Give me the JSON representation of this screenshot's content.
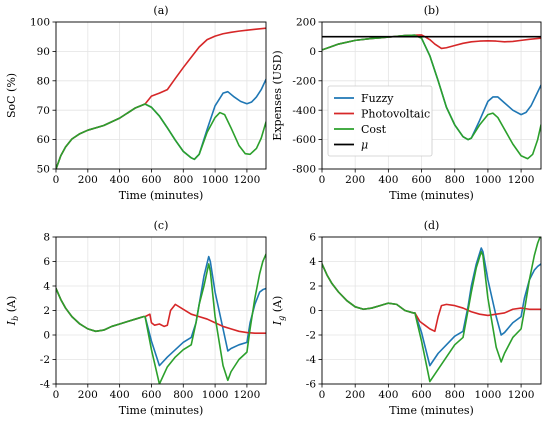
{
  "colors": {
    "fuzzy": "#1f77b4",
    "photovoltaic": "#d62728",
    "cost": "#2ca02c",
    "mu": "#000000"
  },
  "chart_data": [
    {
      "id": "a",
      "type": "line",
      "title": "(a)",
      "xlabel": "Time (minutes)",
      "ylabel": "SoC (%)",
      "xlim": [
        0,
        1320
      ],
      "ylim": [
        50,
        100
      ],
      "xticks": [
        0,
        200,
        400,
        600,
        800,
        1000,
        1200
      ],
      "yticks": [
        50,
        60,
        70,
        80,
        90,
        100
      ],
      "grid": true,
      "series": [
        {
          "name": "Fuzzy",
          "color": "#1f77b4",
          "x": [
            0,
            30,
            60,
            100,
            150,
            200,
            300,
            400,
            500,
            560,
            600,
            650,
            700,
            750,
            800,
            850,
            870,
            900,
            950,
            1000,
            1050,
            1080,
            1120,
            1160,
            1200,
            1230,
            1260,
            1290,
            1320
          ],
          "y": [
            50,
            54.5,
            57.5,
            60.2,
            62,
            63.2,
            64.8,
            67.3,
            70.8,
            72.1,
            71,
            68,
            64,
            59.8,
            56,
            53.8,
            53.3,
            55,
            63.5,
            71.5,
            75.8,
            76.3,
            74.5,
            73,
            72.2,
            72.8,
            74.5,
            77,
            80.5
          ]
        },
        {
          "name": "Photovoltaic",
          "color": "#d62728",
          "x": [
            0,
            30,
            60,
            100,
            150,
            200,
            300,
            400,
            500,
            560,
            600,
            650,
            700,
            750,
            800,
            850,
            900,
            950,
            1000,
            1050,
            1100,
            1150,
            1200,
            1250,
            1320
          ],
          "y": [
            50,
            54.5,
            57.5,
            60.2,
            62,
            63.2,
            64.8,
            67.3,
            70.8,
            72.1,
            74.8,
            75.8,
            77,
            80.8,
            84.5,
            88,
            91.5,
            94,
            95.2,
            96,
            96.5,
            96.9,
            97.2,
            97.5,
            97.9
          ]
        },
        {
          "name": "Cost",
          "color": "#2ca02c",
          "x": [
            0,
            30,
            60,
            100,
            150,
            200,
            300,
            400,
            500,
            560,
            600,
            650,
            700,
            750,
            800,
            850,
            870,
            900,
            950,
            1000,
            1030,
            1060,
            1100,
            1150,
            1190,
            1220,
            1260,
            1290,
            1320
          ],
          "y": [
            50,
            54.5,
            57.5,
            60.2,
            62,
            63.2,
            64.8,
            67.3,
            70.8,
            72.1,
            71,
            68,
            64,
            59.8,
            56,
            53.8,
            53.3,
            55,
            62.5,
            67.5,
            69.2,
            68.5,
            64,
            58,
            55.2,
            55,
            57,
            60.5,
            66
          ]
        }
      ]
    },
    {
      "id": "b",
      "type": "line",
      "title": "(b)",
      "xlabel": "Time (minutes)",
      "ylabel": "Expenses (USD)",
      "xlim": [
        0,
        1320
      ],
      "ylim": [
        -800,
        200
      ],
      "xticks": [
        0,
        200,
        400,
        600,
        800,
        1000,
        1200
      ],
      "yticks": [
        -800,
        -600,
        -400,
        -200,
        0,
        200
      ],
      "grid": true,
      "legend_position": "center-left",
      "series": [
        {
          "name": "Fuzzy",
          "color": "#1f77b4",
          "x": [
            0,
            50,
            100,
            200,
            300,
            400,
            500,
            560,
            600,
            650,
            700,
            750,
            800,
            850,
            880,
            900,
            950,
            1000,
            1030,
            1060,
            1100,
            1150,
            1200,
            1230,
            1260,
            1290,
            1320
          ],
          "y": [
            10,
            30,
            50,
            75,
            88,
            97,
            108,
            110,
            90,
            -30,
            -200,
            -380,
            -500,
            -580,
            -600,
            -590,
            -470,
            -340,
            -310,
            -310,
            -350,
            -400,
            -430,
            -415,
            -370,
            -300,
            -230
          ]
        },
        {
          "name": "Photovoltaic",
          "color": "#d62728",
          "x": [
            0,
            50,
            100,
            200,
            300,
            400,
            500,
            560,
            600,
            620,
            650,
            680,
            720,
            750,
            800,
            850,
            900,
            950,
            1000,
            1050,
            1100,
            1150,
            1200,
            1250,
            1320
          ],
          "y": [
            10,
            30,
            50,
            75,
            88,
            97,
            108,
            110,
            112,
            100,
            80,
            50,
            20,
            25,
            40,
            55,
            65,
            70,
            72,
            70,
            65,
            68,
            75,
            82,
            90
          ]
        },
        {
          "name": "Cost",
          "color": "#2ca02c",
          "x": [
            0,
            50,
            100,
            200,
            300,
            400,
            500,
            560,
            600,
            650,
            700,
            750,
            800,
            850,
            880,
            900,
            950,
            1000,
            1030,
            1060,
            1100,
            1150,
            1200,
            1240,
            1270,
            1300,
            1320
          ],
          "y": [
            10,
            30,
            50,
            75,
            88,
            97,
            108,
            110,
            90,
            -30,
            -200,
            -380,
            -500,
            -580,
            -600,
            -590,
            -500,
            -430,
            -420,
            -450,
            -530,
            -630,
            -710,
            -730,
            -700,
            -600,
            -500
          ]
        },
        {
          "name": "μ",
          "color": "#000000",
          "x": [
            0,
            1320
          ],
          "y": [
            100,
            100
          ]
        }
      ]
    },
    {
      "id": "c",
      "type": "line",
      "title": "(c)",
      "xlabel": "Time (minutes)",
      "ylabel": "I_b (A)",
      "xlim": [
        0,
        1320
      ],
      "ylim": [
        -4,
        8
      ],
      "xticks": [
        0,
        200,
        400,
        600,
        800,
        1000,
        1200
      ],
      "yticks": [
        -4,
        -2,
        0,
        2,
        4,
        6,
        8
      ],
      "grid": true,
      "series": [
        {
          "name": "Fuzzy",
          "color": "#1f77b4",
          "x": [
            0,
            30,
            60,
            100,
            150,
            200,
            250,
            300,
            350,
            400,
            450,
            500,
            550,
            560,
            600,
            650,
            700,
            750,
            800,
            850,
            880,
            900,
            930,
            960,
            970,
            1000,
            1050,
            1080,
            1100,
            1150,
            1200,
            1220,
            1250,
            1280,
            1300,
            1320
          ],
          "y": [
            3.8,
            2.9,
            2.2,
            1.5,
            0.9,
            0.5,
            0.3,
            0.4,
            0.7,
            0.9,
            1.1,
            1.3,
            1.5,
            1.5,
            -0.5,
            -2.5,
            -1.8,
            -1.2,
            -0.6,
            -0.2,
            1.0,
            2.5,
            4.8,
            6.4,
            6.0,
            3.5,
            0.5,
            -1.3,
            -1.1,
            -0.8,
            -0.6,
            1.0,
            2.5,
            3.5,
            3.7,
            3.8
          ]
        },
        {
          "name": "Photovoltaic",
          "color": "#d62728",
          "x": [
            0,
            30,
            60,
            100,
            150,
            200,
            250,
            300,
            350,
            400,
            450,
            500,
            550,
            560,
            590,
            600,
            620,
            650,
            680,
            700,
            720,
            750,
            800,
            850,
            900,
            950,
            1000,
            1050,
            1100,
            1150,
            1200,
            1250,
            1320
          ],
          "y": [
            3.8,
            2.9,
            2.2,
            1.5,
            0.9,
            0.5,
            0.3,
            0.4,
            0.7,
            0.9,
            1.1,
            1.3,
            1.5,
            1.5,
            1.7,
            1.0,
            0.8,
            0.9,
            0.7,
            0.8,
            2.0,
            2.5,
            2.1,
            1.7,
            1.5,
            1.3,
            1.0,
            0.7,
            0.5,
            0.3,
            0.2,
            0.15,
            0.15
          ]
        },
        {
          "name": "Cost",
          "color": "#2ca02c",
          "x": [
            0,
            30,
            60,
            100,
            150,
            200,
            250,
            300,
            350,
            400,
            450,
            500,
            550,
            560,
            600,
            650,
            700,
            750,
            800,
            850,
            880,
            900,
            930,
            960,
            970,
            1000,
            1050,
            1080,
            1100,
            1150,
            1200,
            1220,
            1250,
            1280,
            1300,
            1320
          ],
          "y": [
            3.8,
            2.9,
            2.2,
            1.5,
            0.9,
            0.5,
            0.3,
            0.4,
            0.7,
            0.9,
            1.1,
            1.3,
            1.5,
            1.5,
            -1.2,
            -4.0,
            -2.6,
            -1.8,
            -1.2,
            -0.8,
            1.0,
            2.5,
            4.0,
            5.8,
            5.2,
            1.5,
            -2.5,
            -3.7,
            -3.0,
            -2.0,
            -1.4,
            0.5,
            3.0,
            5.0,
            6.0,
            6.6
          ]
        }
      ]
    },
    {
      "id": "d",
      "type": "line",
      "title": "(d)",
      "xlabel": "Time (minutes)",
      "ylabel": "I_g (A)",
      "xlim": [
        0,
        1320
      ],
      "ylim": [
        -6,
        6
      ],
      "xticks": [
        0,
        200,
        400,
        600,
        800,
        1000,
        1200
      ],
      "yticks": [
        -6,
        -4,
        -2,
        0,
        2,
        4,
        6
      ],
      "grid": true,
      "series": [
        {
          "name": "Fuzzy",
          "color": "#1f77b4",
          "x": [
            0,
            30,
            60,
            100,
            150,
            200,
            250,
            300,
            350,
            400,
            450,
            500,
            550,
            560,
            600,
            650,
            700,
            750,
            800,
            850,
            880,
            900,
            930,
            960,
            970,
            1000,
            1050,
            1080,
            1100,
            1150,
            1200,
            1220,
            1250,
            1280,
            1300,
            1320
          ],
          "y": [
            3.8,
            2.9,
            2.2,
            1.5,
            0.8,
            0.3,
            0.1,
            0.2,
            0.4,
            0.6,
            0.5,
            0.0,
            -0.2,
            -0.2,
            -1.8,
            -4.5,
            -3.5,
            -2.8,
            -2.1,
            -1.7,
            0.3,
            2.0,
            3.8,
            5.1,
            4.8,
            2.5,
            -0.5,
            -2.0,
            -1.8,
            -1.0,
            -0.5,
            1.0,
            2.5,
            3.3,
            3.6,
            3.8
          ]
        },
        {
          "name": "Photovoltaic",
          "color": "#d62728",
          "x": [
            0,
            30,
            60,
            100,
            150,
            200,
            250,
            300,
            350,
            400,
            450,
            500,
            550,
            560,
            590,
            600,
            620,
            650,
            680,
            700,
            720,
            750,
            800,
            850,
            900,
            950,
            1000,
            1050,
            1100,
            1150,
            1200,
            1250,
            1320
          ],
          "y": [
            3.8,
            2.9,
            2.2,
            1.5,
            0.8,
            0.3,
            0.1,
            0.2,
            0.4,
            0.6,
            0.5,
            0.0,
            -0.2,
            -0.2,
            -0.9,
            -1.0,
            -1.2,
            -1.5,
            -1.7,
            -0.5,
            0.4,
            0.5,
            0.4,
            0.2,
            -0.1,
            -0.3,
            -0.4,
            -0.3,
            -0.2,
            0.1,
            0.2,
            0.1,
            0.1
          ]
        },
        {
          "name": "Cost",
          "color": "#2ca02c",
          "x": [
            0,
            30,
            60,
            100,
            150,
            200,
            250,
            300,
            350,
            400,
            450,
            500,
            550,
            560,
            600,
            650,
            700,
            750,
            800,
            850,
            880,
            900,
            930,
            960,
            970,
            1000,
            1050,
            1080,
            1100,
            1150,
            1200,
            1220,
            1250,
            1280,
            1300,
            1320
          ],
          "y": [
            3.8,
            2.9,
            2.2,
            1.5,
            0.8,
            0.3,
            0.1,
            0.2,
            0.4,
            0.6,
            0.5,
            0.0,
            -0.2,
            -0.2,
            -2.5,
            -5.8,
            -4.8,
            -3.8,
            -2.8,
            -2.2,
            0.0,
            1.5,
            3.5,
            4.8,
            4.5,
            1.0,
            -3.0,
            -4.2,
            -3.5,
            -2.2,
            -1.5,
            0.0,
            2.5,
            4.5,
            5.5,
            6.2
          ]
        }
      ]
    }
  ]
}
